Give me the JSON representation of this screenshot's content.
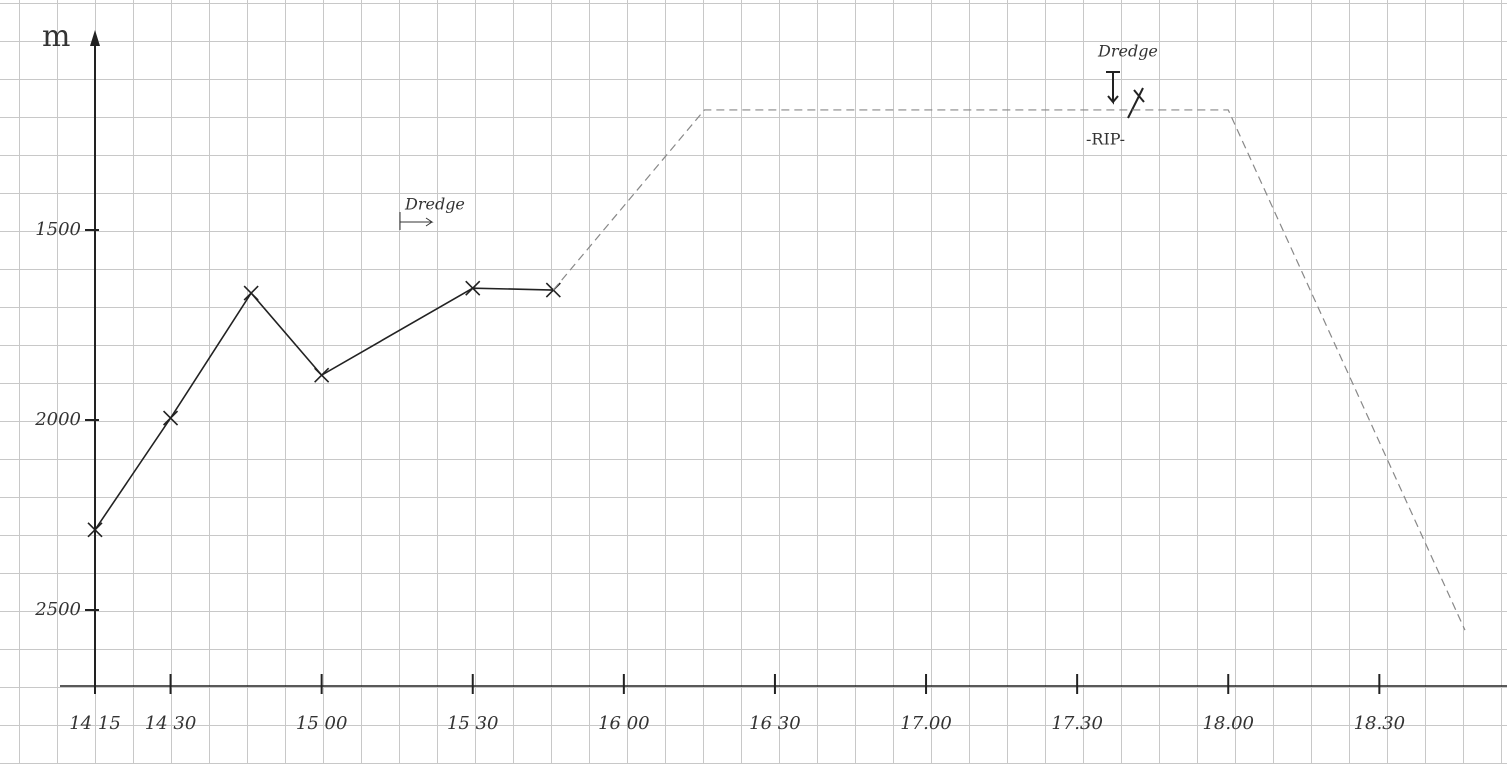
{
  "chart_data": {
    "type": "line",
    "y_label": "m",
    "annotations": [
      "Dredge",
      "Dredge",
      "-RIP-"
    ],
    "invert_y": true,
    "xlim": [
      855,
      1128
    ],
    "xticks": [
      {
        "value": 855,
        "label": "14 15"
      },
      {
        "value": 870,
        "label": "14 30"
      },
      {
        "value": 900,
        "label": "15 00"
      },
      {
        "value": 930,
        "label": "15 30"
      },
      {
        "value": 960,
        "label": "16 00"
      },
      {
        "value": 990,
        "label": "16 30"
      },
      {
        "value": 1020,
        "label": "17.00"
      },
      {
        "value": 1050,
        "label": "17.30"
      },
      {
        "value": 1080,
        "label": "18.00"
      },
      {
        "value": 1110,
        "label": "18.30"
      }
    ],
    "ylim": [
      1000,
      2700
    ],
    "yticks": [
      1500,
      2000,
      2500
    ],
    "series": [
      {
        "color": "#222222",
        "dashed": false,
        "markers": true,
        "x": [
          855,
          870,
          886,
          900,
          930,
          946
        ],
        "values": [
          2289,
          1995,
          1666,
          1882,
          1653,
          1658
        ]
      },
      {
        "color": "#888888",
        "dashed": true,
        "markers": false,
        "x": [
          946,
          976,
          1080,
          1127
        ],
        "values": [
          1658,
          1184,
          1184,
          2553
        ]
      }
    ]
  }
}
